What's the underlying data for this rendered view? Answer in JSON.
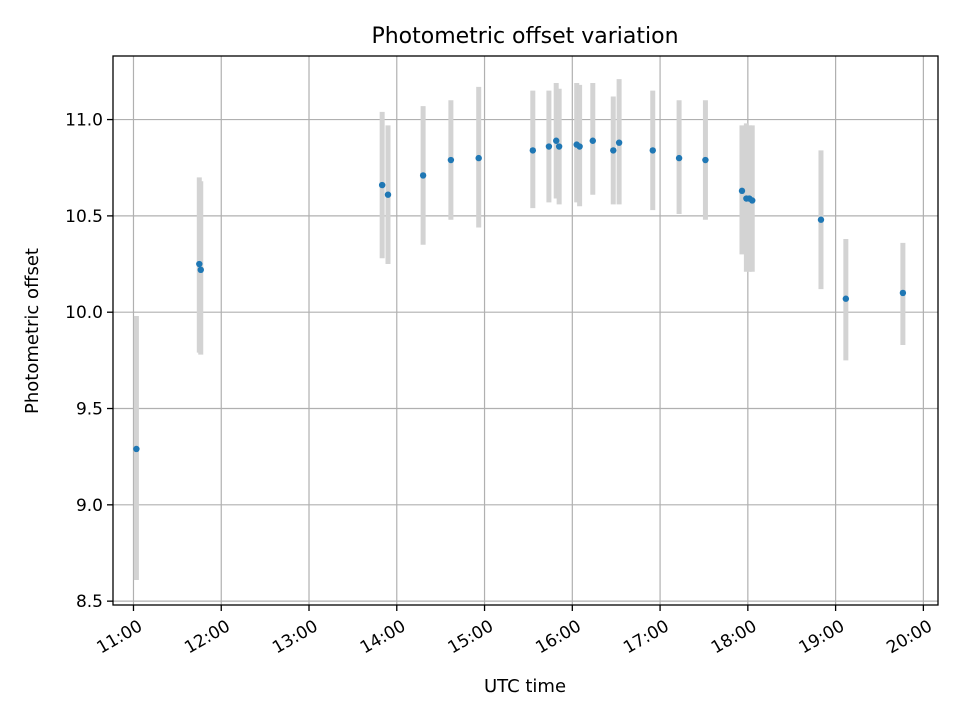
{
  "chart_data": {
    "type": "scatter",
    "title": "Photometric offset variation",
    "xlabel": "UTC time",
    "ylabel": "Photometric offset",
    "grid": true,
    "x_axis": {
      "kind": "time",
      "range": [
        "10:46",
        "20:10"
      ],
      "ticks": [
        "11:00",
        "12:00",
        "13:00",
        "14:00",
        "15:00",
        "16:00",
        "17:00",
        "18:00",
        "19:00",
        "20:00"
      ],
      "tick_label_rotation_deg": 30
    },
    "y_axis": {
      "range": [
        8.48,
        11.33
      ],
      "ticks": [
        8.5,
        9.0,
        9.5,
        10.0,
        10.5,
        11.0
      ],
      "tick_labels": [
        "8.5",
        "9.0",
        "9.5",
        "10.0",
        "10.5",
        "11.0"
      ]
    },
    "colors": {
      "point": "#1f77b4",
      "errorbar": "#d3d3d3"
    },
    "points": [
      {
        "t": "11:02",
        "y": 9.29,
        "lo": 8.61,
        "hi": 9.98
      },
      {
        "t": "11:45",
        "y": 10.25,
        "lo": 9.79,
        "hi": 10.7
      },
      {
        "t": "11:46",
        "y": 10.22,
        "lo": 9.78,
        "hi": 10.68
      },
      {
        "t": "13:50",
        "y": 10.66,
        "lo": 10.28,
        "hi": 11.04
      },
      {
        "t": "13:54",
        "y": 10.61,
        "lo": 10.25,
        "hi": 10.97
      },
      {
        "t": "14:18",
        "y": 10.71,
        "lo": 10.35,
        "hi": 11.07
      },
      {
        "t": "14:37",
        "y": 10.79,
        "lo": 10.48,
        "hi": 11.1
      },
      {
        "t": "14:56",
        "y": 10.8,
        "lo": 10.44,
        "hi": 11.17
      },
      {
        "t": "15:33",
        "y": 10.84,
        "lo": 10.54,
        "hi": 11.15
      },
      {
        "t": "15:44",
        "y": 10.86,
        "lo": 10.57,
        "hi": 11.15
      },
      {
        "t": "15:49",
        "y": 10.89,
        "lo": 10.59,
        "hi": 11.19
      },
      {
        "t": "15:51",
        "y": 10.86,
        "lo": 10.56,
        "hi": 11.16
      },
      {
        "t": "16:03",
        "y": 10.87,
        "lo": 10.57,
        "hi": 11.19
      },
      {
        "t": "16:05",
        "y": 10.86,
        "lo": 10.55,
        "hi": 11.18
      },
      {
        "t": "16:14",
        "y": 10.89,
        "lo": 10.61,
        "hi": 11.19
      },
      {
        "t": "16:28",
        "y": 10.84,
        "lo": 10.56,
        "hi": 11.12
      },
      {
        "t": "16:32",
        "y": 10.88,
        "lo": 10.56,
        "hi": 11.21
      },
      {
        "t": "16:55",
        "y": 10.84,
        "lo": 10.53,
        "hi": 11.15
      },
      {
        "t": "17:13",
        "y": 10.8,
        "lo": 10.51,
        "hi": 11.1
      },
      {
        "t": "17:31",
        "y": 10.79,
        "lo": 10.48,
        "hi": 11.1
      },
      {
        "t": "17:56",
        "y": 10.63,
        "lo": 10.3,
        "hi": 10.97
      },
      {
        "t": "17:59",
        "y": 10.59,
        "lo": 10.21,
        "hi": 10.98
      },
      {
        "t": "18:01",
        "y": 10.59,
        "lo": 10.21,
        "hi": 10.97
      },
      {
        "t": "18:03",
        "y": 10.58,
        "lo": 10.21,
        "hi": 10.97
      },
      {
        "t": "18:50",
        "y": 10.48,
        "lo": 10.12,
        "hi": 10.84
      },
      {
        "t": "19:07",
        "y": 10.07,
        "lo": 9.75,
        "hi": 10.38
      },
      {
        "t": "19:46",
        "y": 10.1,
        "lo": 9.83,
        "hi": 10.36
      }
    ]
  }
}
